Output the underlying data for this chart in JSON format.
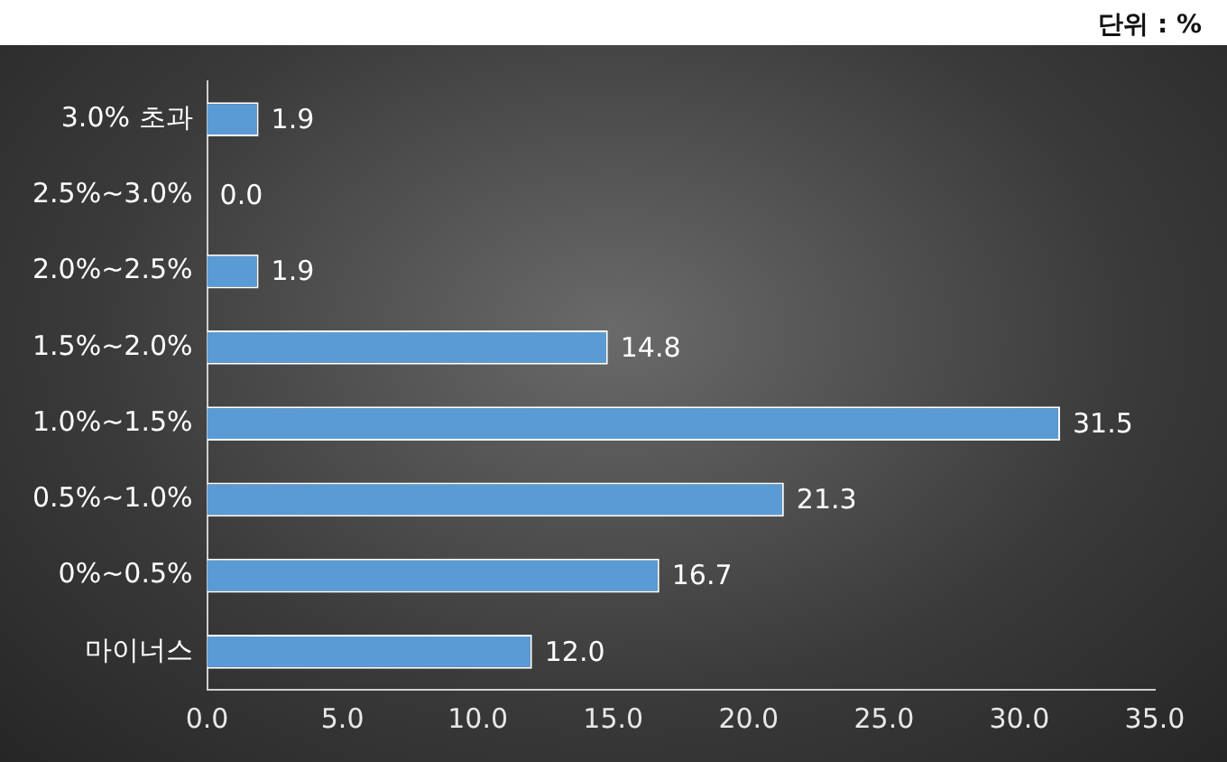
{
  "chart_data": {
    "type": "bar",
    "orientation": "horizontal",
    "annotations": [
      "단위 : %"
    ],
    "categories": [
      "3.0% 초과",
      "2.5%~3.0%",
      "2.0%~2.5%",
      "1.5%~2.0%",
      "1.0%~1.5%",
      "0.5%~1.0%",
      "0%~0.5%",
      "마이너스"
    ],
    "values": [
      1.9,
      0.0,
      1.9,
      14.8,
      31.5,
      21.3,
      16.7,
      12.0
    ],
    "value_labels": [
      "1.9",
      "0.0",
      "1.9",
      "14.8",
      "31.5",
      "21.3",
      "16.7",
      "12.0"
    ],
    "color": "#5b9bd5",
    "xlim": [
      0,
      35
    ],
    "xticks": [
      {
        "value": 0,
        "label": "0.0"
      },
      {
        "value": 5,
        "label": "5.0"
      },
      {
        "value": 10,
        "label": "10.0"
      },
      {
        "value": 15,
        "label": "15.0"
      },
      {
        "value": 20,
        "label": "20.0"
      },
      {
        "value": 25,
        "label": "25.0"
      },
      {
        "value": 30,
        "label": "30.0"
      },
      {
        "value": 35,
        "label": "35.0"
      }
    ],
    "grid": false,
    "legend": false
  }
}
